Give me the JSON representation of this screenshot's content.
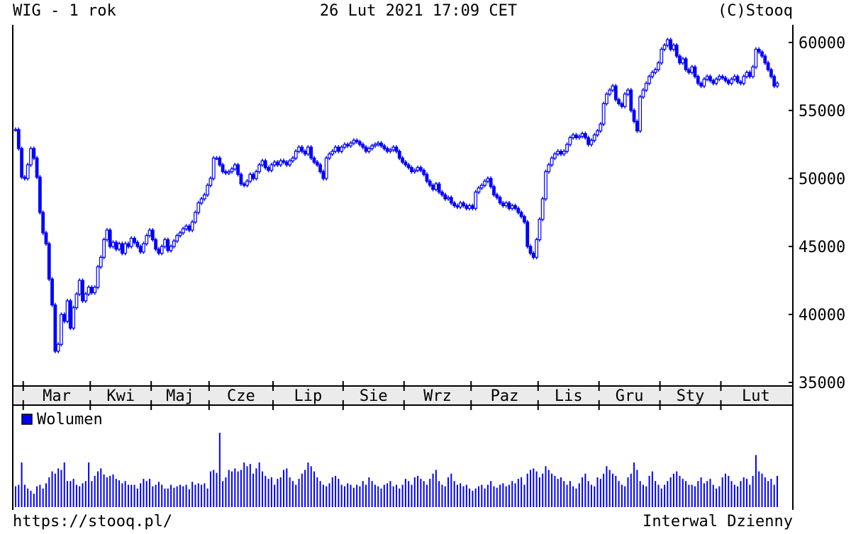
{
  "header": {
    "title": "WIG - 1 rok",
    "timestamp": "26 Lut 2021 17:09 CET",
    "copyright": "(C)Stooq"
  },
  "footer": {
    "url": "https://stooq.pl/",
    "interval": "Interwal Dzienny"
  },
  "colors": {
    "candle": "#0000ff",
    "volume": "#0000ff",
    "month_band": "#ebebeb"
  },
  "chart_data": {
    "type": "candlestick",
    "ylim": [
      35000,
      61000
    ],
    "y_ticks": [
      "60000",
      "55000",
      "50000",
      "45000",
      "40000",
      "35000"
    ],
    "x_tick_labels": [
      "Mar",
      "Kwi",
      "Maj",
      "Cze",
      "Lip",
      "Sie",
      "Wrz",
      "Paz",
      "Lis",
      "Gru",
      "Sty",
      "Lut"
    ],
    "grid": false,
    "close": [
      53600,
      52200,
      50100,
      50000,
      51000,
      52200,
      51500,
      50100,
      47500,
      46000,
      45200,
      42600,
      40700,
      37300,
      37800,
      40000,
      39500,
      41000,
      39000,
      40500,
      41500,
      42500,
      41000,
      41500,
      42000,
      41600,
      42000,
      43500,
      44200,
      45500,
      46200,
      45000,
      45300,
      44800,
      45200,
      44500,
      45200,
      45000,
      45600,
      45300,
      45000,
      44600,
      45200,
      45800,
      46200,
      45500,
      44800,
      44500,
      45000,
      45500,
      44700,
      45000,
      45400,
      45800,
      46000,
      46300,
      46500,
      46200,
      46800,
      47500,
      48200,
      48500,
      48800,
      49500,
      50000,
      51500,
      51500,
      51000,
      50500,
      50400,
      50500,
      50700,
      51000,
      50300,
      49600,
      49500,
      49800,
      50300,
      50000,
      50500,
      51000,
      51300,
      50800,
      50600,
      51000,
      51200,
      51000,
      51300,
      51200,
      51000,
      51300,
      51500,
      52000,
      52300,
      52000,
      51800,
      52300,
      51500,
      51200,
      51000,
      50500,
      50000,
      51500,
      51800,
      52000,
      52300,
      52000,
      52300,
      52500,
      52400,
      52600,
      52800,
      52700,
      52500,
      52300,
      52000,
      52200,
      52400,
      52500,
      52600,
      52400,
      52200,
      52000,
      52100,
      52300,
      52000,
      51500,
      51200,
      51000,
      50800,
      50500,
      50600,
      50800,
      50600,
      50300,
      49800,
      49500,
      49200,
      49600,
      49000,
      48800,
      48500,
      48600,
      48200,
      48000,
      47900,
      48200,
      48000,
      47800,
      48000,
      47800,
      49000,
      49300,
      49500,
      49800,
      50000,
      49400,
      48800,
      48600,
      48200,
      48000,
      48200,
      47800,
      48000,
      47800,
      47500,
      47200,
      46800,
      45000,
      44500,
      44200,
      45500,
      47000,
      48500,
      50500,
      51000,
      51500,
      51800,
      52000,
      51800,
      52000,
      52500,
      53000,
      53200,
      53000,
      53100,
      53300,
      53000,
      52500,
      52800,
      53200,
      53500,
      54000,
      55500,
      56200,
      56500,
      56800,
      55800,
      55500,
      55300,
      56200,
      56500,
      55000,
      54200,
      53500,
      56000,
      56500,
      57000,
      57500,
      57800,
      58000,
      58500,
      59500,
      59800,
      60200,
      59500,
      59800,
      59000,
      58500,
      58800,
      58000,
      57800,
      58200,
      57500,
      57000,
      56800,
      57300,
      57500,
      57200,
      57000,
      57300,
      57500,
      57400,
      57200,
      57000,
      57300,
      57500,
      57100,
      57000,
      57500,
      57800,
      57500,
      58200,
      59500,
      59300,
      59000,
      58500,
      58000,
      57500,
      56800,
      57000
    ],
    "volume_legend": "Wolumen",
    "volume_relative": [
      28,
      30,
      60,
      30,
      25,
      22,
      18,
      28,
      30,
      25,
      32,
      40,
      48,
      45,
      52,
      50,
      60,
      35,
      35,
      38,
      30,
      28,
      32,
      35,
      60,
      35,
      42,
      48,
      52,
      44,
      40,
      42,
      44,
      38,
      36,
      32,
      35,
      30,
      30,
      30,
      25,
      32,
      38,
      35,
      38,
      28,
      30,
      34,
      30,
      25,
      25,
      30,
      26,
      28,
      30,
      28,
      30,
      24,
      34,
      30,
      32,
      30,
      32,
      25,
      48,
      50,
      46,
      100,
      35,
      40,
      50,
      48,
      52,
      48,
      50,
      60,
      55,
      58,
      45,
      52,
      60,
      48,
      42,
      38,
      40,
      30,
      38,
      40,
      50,
      52,
      40,
      35,
      30,
      38,
      45,
      50,
      60,
      55,
      48,
      40,
      35,
      30,
      28,
      32,
      40,
      42,
      38,
      30,
      28,
      32,
      30,
      26,
      30,
      28,
      35,
      30,
      40,
      35,
      30,
      28,
      25,
      30,
      32,
      35,
      28,
      30,
      25,
      30,
      38,
      35,
      30,
      40,
      42,
      38,
      35,
      30,
      38,
      45,
      50,
      35,
      30,
      28,
      40,
      45,
      35,
      30,
      32,
      28,
      30,
      25,
      22,
      25,
      28,
      30,
      25,
      30,
      35,
      28,
      26,
      30,
      32,
      28,
      30,
      35,
      32,
      38,
      40,
      30,
      45,
      50,
      52,
      48,
      40,
      45,
      55,
      50,
      45,
      42,
      38,
      40,
      35,
      30,
      35,
      28,
      25,
      32,
      40,
      45,
      35,
      30,
      28,
      40,
      38,
      45,
      55,
      50,
      45,
      42,
      35,
      30,
      28,
      40,
      45,
      60,
      50,
      35,
      30,
      28,
      42,
      48,
      35,
      30,
      25,
      30,
      35,
      40,
      45,
      48,
      42,
      38,
      35,
      30,
      30,
      28,
      35,
      40,
      32,
      35,
      38,
      30,
      25,
      28,
      40,
      45,
      42,
      35,
      30,
      28,
      35,
      40,
      38,
      30,
      42,
      70,
      48,
      45,
      40,
      35,
      38,
      30,
      42
    ]
  }
}
